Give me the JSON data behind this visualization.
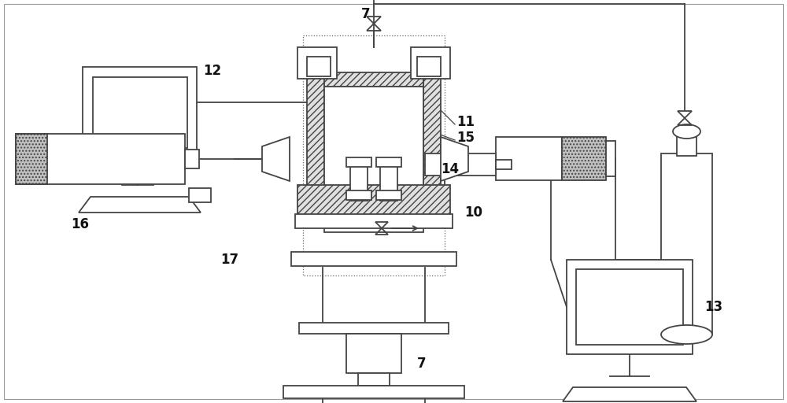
{
  "bg_color": "#ffffff",
  "lc": "#444444",
  "lw": 1.3,
  "hatch_lw": 0.5,
  "label_fontsize": 12,
  "label_fontweight": "bold"
}
